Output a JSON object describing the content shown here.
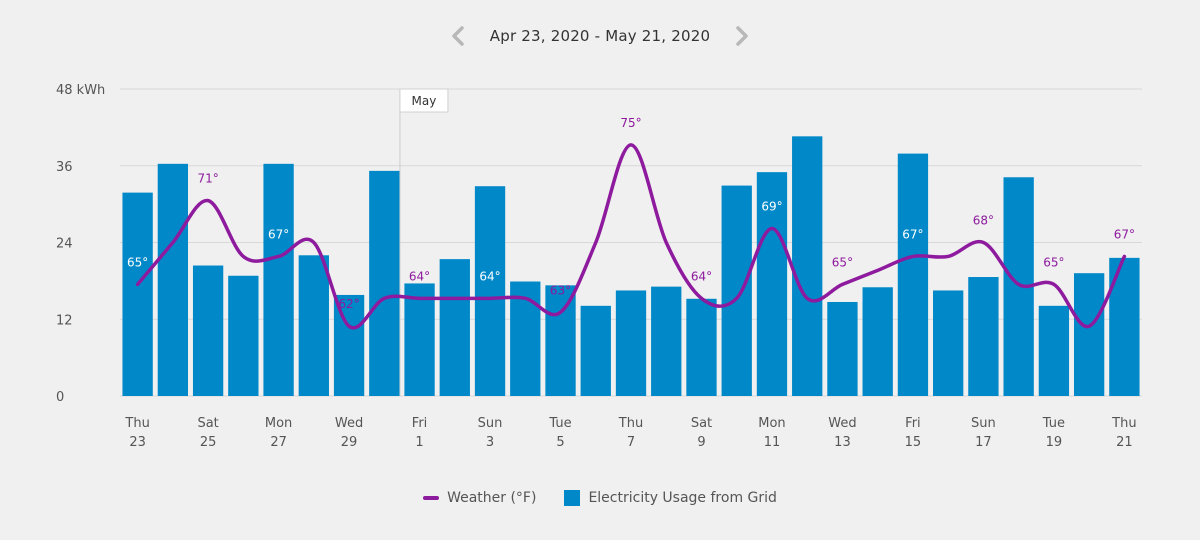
{
  "header": {
    "date_range": "Apr 23, 2020 - May 21, 2020",
    "prev_icon": "chevron-left-icon",
    "next_icon": "chevron-right-icon"
  },
  "legend": {
    "weather_label": "Weather (°F)",
    "usage_label": "Electricity Usage from Grid"
  },
  "colors": {
    "bar": "#0088c8",
    "weather": "#8e1a9e",
    "grid": "#d8d8d8",
    "background": "#f0f0f0",
    "arrow": "#b8b8b8"
  },
  "chart_data": {
    "type": "bar",
    "ylim": [
      0,
      48
    ],
    "y_ticks": [
      "48 kWh",
      "36",
      "24",
      "12",
      "0"
    ],
    "y_tick_values": [
      48,
      36,
      24,
      12,
      0
    ],
    "grid": true,
    "legend_position": "bottom",
    "days": [
      "Apr 23",
      "Apr 24",
      "Apr 25",
      "Apr 26",
      "Apr 27",
      "Apr 28",
      "Apr 29",
      "Apr 30",
      "May 1",
      "May 2",
      "May 3",
      "May 4",
      "May 5",
      "May 6",
      "May 7",
      "May 8",
      "May 9",
      "May 10",
      "May 11",
      "May 12",
      "May 13",
      "May 14",
      "May 15",
      "May 16",
      "May 17",
      "May 18",
      "May 19",
      "May 20",
      "May 21"
    ],
    "x_labels": [
      {
        "day": "Thu",
        "date": "23",
        "index": 0
      },
      {
        "day": "Sat",
        "date": "25",
        "index": 2
      },
      {
        "day": "Mon",
        "date": "27",
        "index": 4
      },
      {
        "day": "Wed",
        "date": "29",
        "index": 6
      },
      {
        "day": "Fri",
        "date": "1",
        "index": 8
      },
      {
        "day": "Sun",
        "date": "3",
        "index": 10
      },
      {
        "day": "Tue",
        "date": "5",
        "index": 12
      },
      {
        "day": "Thu",
        "date": "7",
        "index": 14
      },
      {
        "day": "Sat",
        "date": "9",
        "index": 16
      },
      {
        "day": "Mon",
        "date": "11",
        "index": 18
      },
      {
        "day": "Wed",
        "date": "13",
        "index": 20
      },
      {
        "day": "Fri",
        "date": "15",
        "index": 22
      },
      {
        "day": "Sun",
        "date": "17",
        "index": 24
      },
      {
        "day": "Tue",
        "date": "19",
        "index": 26
      },
      {
        "day": "Thu",
        "date": "21",
        "index": 28
      }
    ],
    "month_marker": {
      "label": "May",
      "index": 8
    },
    "series": [
      {
        "name": "Electricity Usage from Grid",
        "type": "bar",
        "values": [
          31.8,
          36.3,
          20.4,
          18.8,
          36.3,
          22.0,
          15.8,
          35.2,
          17.6,
          21.4,
          32.8,
          17.9,
          17.3,
          14.1,
          16.5,
          17.1,
          15.2,
          32.9,
          35.0,
          40.6,
          14.7,
          17.0,
          37.9,
          16.5,
          18.6,
          34.2,
          14.1,
          19.2,
          21.6
        ]
      },
      {
        "name": "Weather (°F)",
        "type": "line",
        "values": [
          65,
          68,
          71,
          67,
          67,
          68,
          62,
          64,
          64,
          64,
          64,
          64,
          63,
          68,
          75,
          68,
          64,
          64,
          69,
          64,
          65,
          66,
          67,
          67,
          68,
          65,
          65,
          62,
          67
        ],
        "temp_range": [
          57,
          79
        ]
      }
    ],
    "temp_labels": [
      {
        "index": 0,
        "text": "65°"
      },
      {
        "index": 2,
        "text": "71°"
      },
      {
        "index": 4,
        "text": "67°"
      },
      {
        "index": 6,
        "text": "62°"
      },
      {
        "index": 8,
        "text": "64°"
      },
      {
        "index": 10,
        "text": "64°"
      },
      {
        "index": 12,
        "text": "63°"
      },
      {
        "index": 14,
        "text": "75°"
      },
      {
        "index": 16,
        "text": "64°"
      },
      {
        "index": 18,
        "text": "69°"
      },
      {
        "index": 20,
        "text": "65°"
      },
      {
        "index": 22,
        "text": "67°"
      },
      {
        "index": 24,
        "text": "68°"
      },
      {
        "index": 26,
        "text": "65°"
      },
      {
        "index": 28,
        "text": "67°"
      }
    ]
  }
}
